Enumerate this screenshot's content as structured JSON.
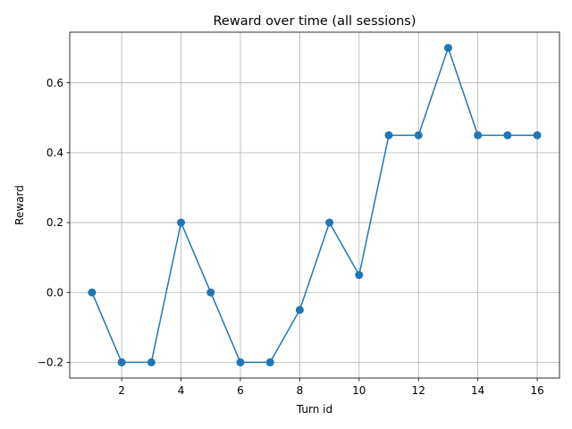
{
  "chart_data": {
    "type": "line",
    "title": "Reward over time (all sessions)",
    "xlabel": "Turn id",
    "ylabel": "Reward",
    "x": [
      1,
      2,
      3,
      4,
      5,
      6,
      7,
      8,
      9,
      10,
      11,
      12,
      13,
      14,
      15,
      16
    ],
    "series": [
      {
        "values": [
          0.0,
          -0.2,
          -0.2,
          0.2,
          0.0,
          -0.2,
          -0.2,
          -0.05,
          0.2,
          0.05,
          0.45,
          0.45,
          0.7,
          0.45,
          0.45,
          0.45
        ],
        "color": "#1f77b4",
        "marker": "circle"
      }
    ],
    "xlim": [
      0.25,
      16.75
    ],
    "ylim": [
      -0.245,
      0.745
    ],
    "xticks": [
      2,
      4,
      6,
      8,
      10,
      12,
      14,
      16
    ],
    "xtick_labels": [
      "2",
      "4",
      "6",
      "8",
      "10",
      "12",
      "14",
      "16"
    ],
    "yticks": [
      -0.2,
      0.0,
      0.2,
      0.4,
      0.6
    ],
    "ytick_labels": [
      "−0.2",
      "0.0",
      "0.2",
      "0.4",
      "0.6"
    ],
    "grid": true,
    "grid_color": "#b0b0b0",
    "axis_color": "#000000"
  }
}
